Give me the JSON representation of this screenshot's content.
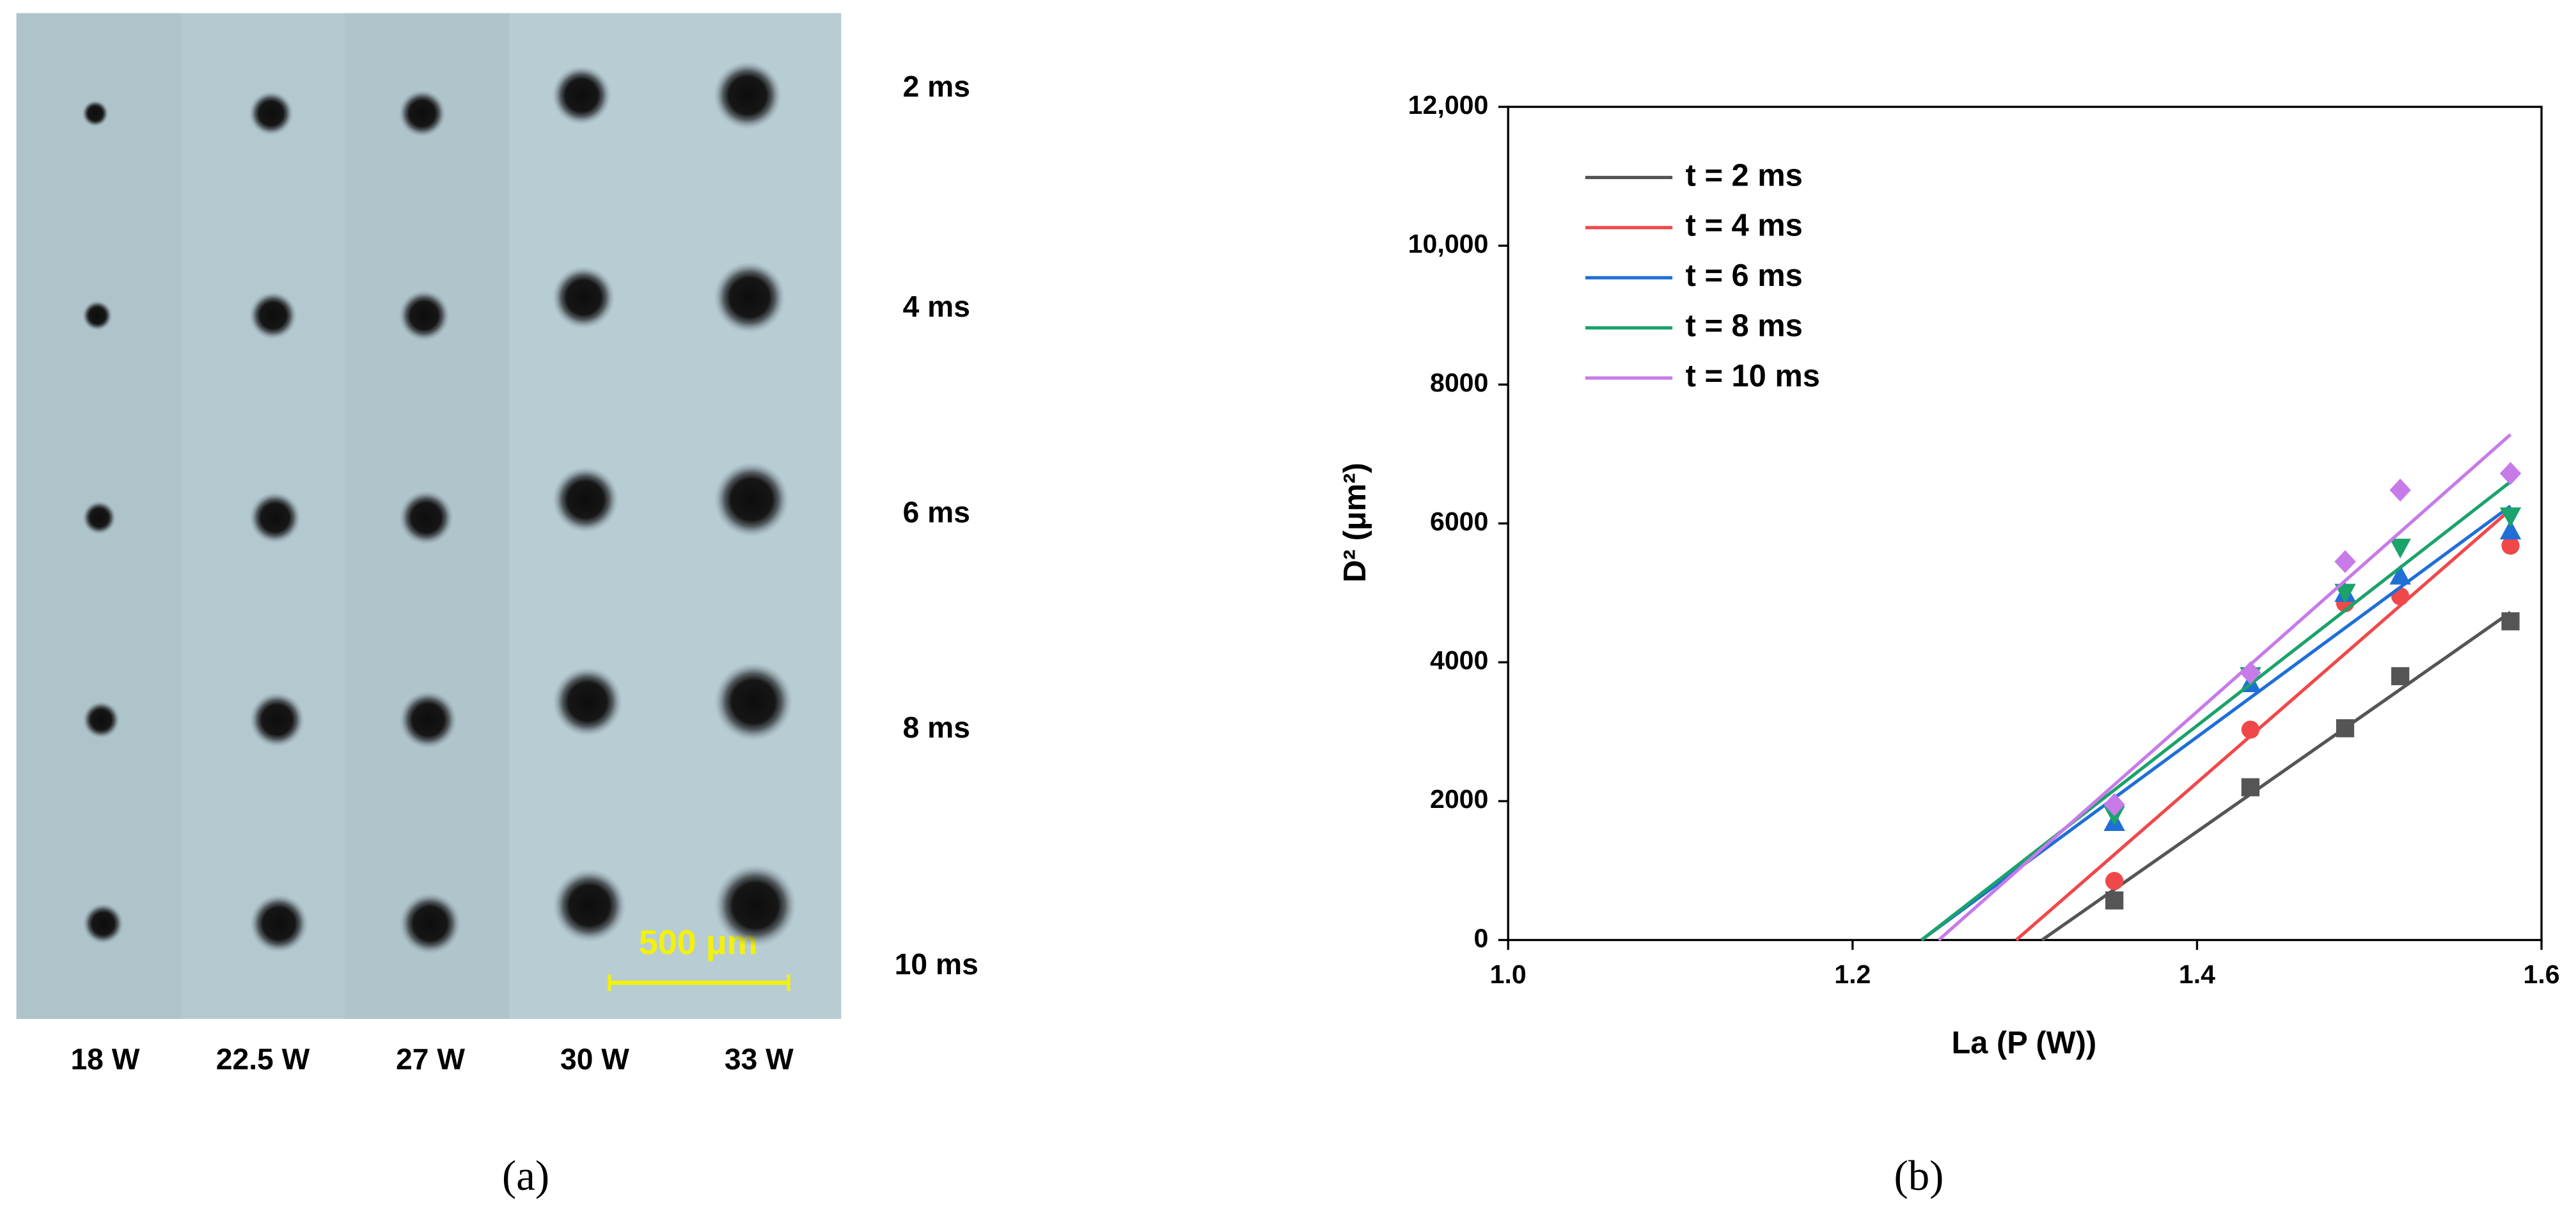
{
  "panel_a": {
    "row_labels": [
      "2 ms",
      "4 ms",
      "6 ms",
      "8 ms",
      "10 ms"
    ],
    "column_labels": [
      "18 W",
      "22.5 W",
      "27 W",
      "30 W",
      "33 W"
    ],
    "scale_bar": "500 μm"
  },
  "captions": [
    "(a)",
    "(b)"
  ],
  "chart_data": {
    "type": "scatter",
    "x_label": "La (P (W))",
    "y_label": "D² (μm²)",
    "x": [
      1.352,
      1.431,
      1.486,
      1.518,
      1.582
    ],
    "series": [
      {
        "name": "t = 2 ms",
        "color": "#555555",
        "marker": "square",
        "values": [
          570,
          2200,
          3050,
          3800,
          4590
        ],
        "fit_x": [
          1.31,
          1.582
        ],
        "fit_values": [
          0,
          4720
        ]
      },
      {
        "name": "t = 4 ms",
        "color": "#f0484a",
        "marker": "circle",
        "values": [
          850,
          3030,
          4850,
          4950,
          5680
        ],
        "fit_x": [
          1.295,
          1.582
        ],
        "fit_values": [
          0,
          6200
        ]
      },
      {
        "name": "t = 6 ms",
        "color": "#1f6fd6",
        "marker": "triangle-up",
        "values": [
          1700,
          3700,
          5000,
          5250,
          5900
        ],
        "fit_x": [
          1.24,
          1.582
        ],
        "fit_values": [
          0,
          6250
        ]
      },
      {
        "name": "t = 8 ms",
        "color": "#1aa36a",
        "marker": "triangle-down",
        "values": [
          1800,
          3800,
          5000,
          5650,
          6100
        ],
        "fit_x": [
          1.24,
          1.582
        ],
        "fit_values": [
          0,
          6600
        ]
      },
      {
        "name": "t = 10 ms",
        "color": "#c77ae8",
        "marker": "diamond",
        "values": [
          1950,
          3850,
          5450,
          6480,
          6720
        ],
        "fit_x": [
          1.25,
          1.582
        ],
        "fit_values": [
          0,
          7280
        ]
      }
    ],
    "xlim": [
      1.0,
      1.6
    ],
    "xticks": [
      {
        "value": 1.0,
        "label": "1.0"
      },
      1.2,
      1.4,
      {
        "value": 1.6,
        "label": "1.6"
      }
    ],
    "ylim": [
      0,
      12000
    ],
    "yticks": [
      0,
      2000,
      4000,
      6000,
      8000,
      {
        "value": 10000,
        "label": "10,000"
      },
      {
        "value": 12000,
        "label": "12,000"
      }
    ],
    "grid": false,
    "legend": "top-left"
  }
}
